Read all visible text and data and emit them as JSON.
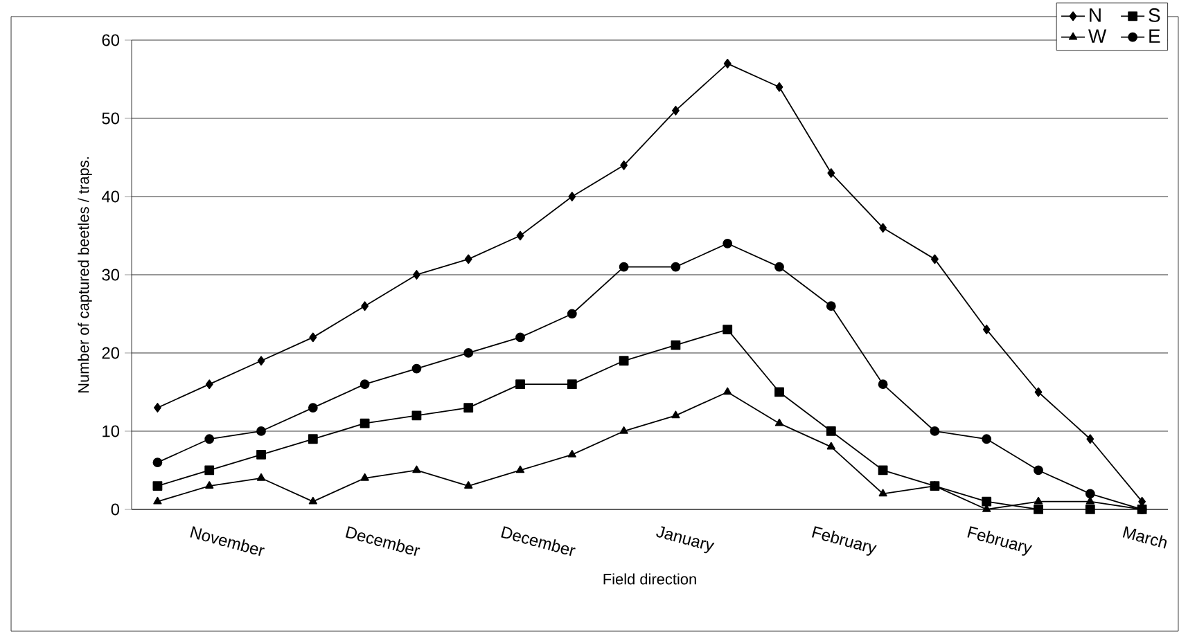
{
  "chart_data": {
    "type": "line",
    "xlabel": "Field direction",
    "ylabel": "Number of captured beetles / traps.",
    "categories": [
      null,
      "November",
      null,
      null,
      "December",
      null,
      null,
      "December",
      null,
      null,
      "January",
      null,
      null,
      "February",
      null,
      null,
      "February",
      null,
      null,
      "March"
    ],
    "series": [
      {
        "name": "N",
        "color": "#000000",
        "marker": "diamond",
        "values": [
          13,
          16,
          19,
          22,
          26,
          30,
          32,
          35,
          40,
          44,
          51,
          57,
          54,
          43,
          36,
          32,
          23,
          15,
          9,
          1
        ]
      },
      {
        "name": "S",
        "color": "#000000",
        "marker": "square",
        "values": [
          3,
          5,
          7,
          9,
          11,
          12,
          13,
          16,
          16,
          19,
          21,
          23,
          15,
          10,
          5,
          3,
          1,
          0,
          0,
          0
        ]
      },
      {
        "name": "W",
        "color": "#000000",
        "marker": "triangle",
        "values": [
          1,
          3,
          4,
          1,
          4,
          5,
          3,
          5,
          7,
          10,
          12,
          15,
          11,
          8,
          2,
          3,
          0,
          1,
          1,
          0
        ]
      },
      {
        "name": "E",
        "color": "#000000",
        "marker": "circle",
        "values": [
          6,
          9,
          10,
          13,
          16,
          18,
          20,
          22,
          25,
          31,
          31,
          34,
          31,
          26,
          16,
          10,
          9,
          5,
          2,
          0
        ]
      }
    ],
    "ylim": [
      0,
      60
    ],
    "yticks": [
      0,
      10,
      20,
      30,
      40,
      50,
      60
    ],
    "grid": "y",
    "legend": "top right",
    "line_style": "solid"
  }
}
